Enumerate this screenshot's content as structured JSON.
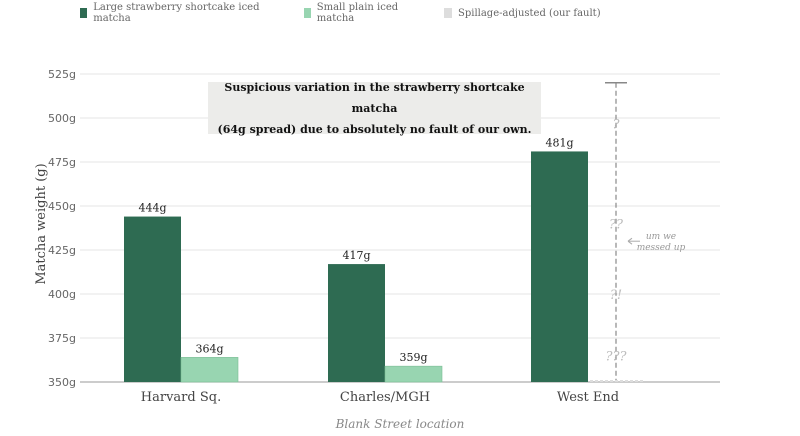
{
  "legend": [
    {
      "label": "Large strawberry shortcake iced matcha",
      "color": "#2e6b52"
    },
    {
      "label": "Small plain iced matcha",
      "color": "#98d5b1"
    },
    {
      "label": "Spillage-adjusted (our fault)",
      "color": "#dddddd"
    }
  ],
  "callout": {
    "line1": "Suspicious variation in the strawberry shortcake matcha",
    "line2": "(64g spread) due to absolutely no fault of our own."
  },
  "chart_data": {
    "type": "bar",
    "title": "",
    "xlabel": "Blank Street location",
    "ylabel": "Matcha weight (g)",
    "categories": [
      "Harvard Sq.",
      "Charles/MGH",
      "West End"
    ],
    "ylim": [
      350,
      525
    ],
    "yticks": [
      350,
      375,
      400,
      425,
      450,
      475,
      500,
      525
    ],
    "tick_suffix": "g",
    "grid": true,
    "series": [
      {
        "name": "Large strawberry shortcake iced matcha",
        "color": "#2e6b52",
        "values": [
          444,
          417,
          481
        ],
        "labels": [
          "444g",
          "417g",
          "481g"
        ]
      },
      {
        "name": "Small plain iced matcha",
        "color": "#98d5b1",
        "values": [
          364,
          359,
          null
        ],
        "labels": [
          "364g",
          "359g",
          ""
        ]
      }
    ],
    "uncertainty": {
      "category": "West End",
      "range": [
        350,
        520
      ],
      "marks": [
        "?",
        "??",
        "?!",
        "???"
      ],
      "mark_values": [
        497,
        440,
        400,
        365
      ],
      "note_line1": "um we",
      "note_line2": "messed up",
      "note_value": 430
    }
  }
}
